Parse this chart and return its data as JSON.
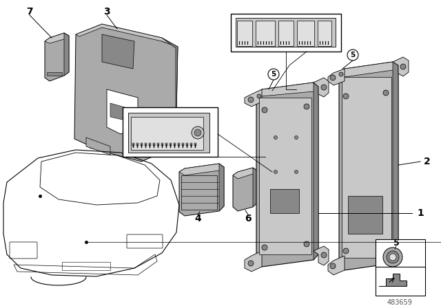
{
  "bg_color": "#ffffff",
  "diagram_id": "483659",
  "lc": "#000000",
  "gray_light": "#c8c8c8",
  "gray_mid": "#aaaaaa",
  "gray_dark": "#888888",
  "gray_darker": "#666666",
  "gray_very_light": "#e0e0e0",
  "white": "#ffffff"
}
